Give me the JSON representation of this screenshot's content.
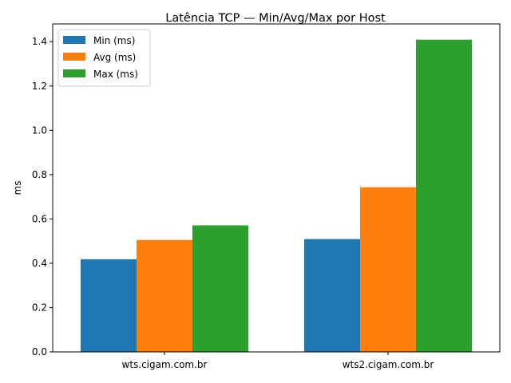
{
  "chart_data": {
    "type": "bar",
    "title": "Latência TCP — Min/Avg/Max por Host",
    "xlabel": "",
    "ylabel": "ms",
    "categories": [
      "wts.cigam.com.br",
      "wts2.cigam.com.br"
    ],
    "series": [
      {
        "name": "Min (ms)",
        "values": [
          0.418,
          0.509
        ],
        "color": "#1f77b4"
      },
      {
        "name": "Avg (ms)",
        "values": [
          0.505,
          0.743
        ],
        "color": "#ff7f0e"
      },
      {
        "name": "Max (ms)",
        "values": [
          0.571,
          1.409
        ],
        "color": "#2ca02c"
      }
    ],
    "yticks": [
      "0.0",
      "0.2",
      "0.4",
      "0.6",
      "0.8",
      "1.0",
      "1.2",
      "1.4"
    ],
    "ylim": [
      0,
      1.48
    ],
    "grid": false,
    "legend": "top-left"
  }
}
